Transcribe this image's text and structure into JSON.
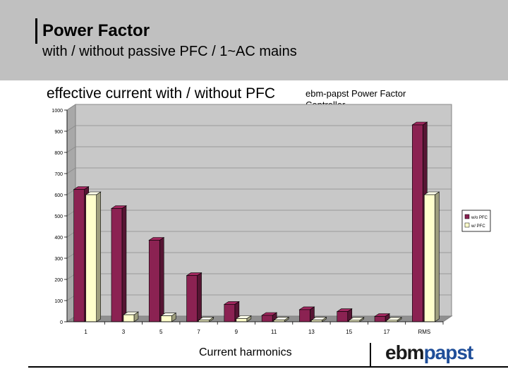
{
  "header": {
    "title": "Power Factor",
    "subtitle": "with / without passive PFC / 1~AC mains"
  },
  "chart_heading": "effective current with / without PFC",
  "controller_label": "ebm-papst Power Factor Controller",
  "footer": {
    "logo_part1": "ebm",
    "logo_part2": "papst"
  },
  "colors": {
    "header_bg": "#c0c0c0",
    "series_without": "#8b2252",
    "series_with": "#ffffcc",
    "logo_blue": "#1f4e99"
  },
  "chart_data": {
    "type": "bar",
    "categories": [
      "1",
      "3",
      "5",
      "7",
      "9",
      "11",
      "13",
      "15",
      "17",
      "RMS"
    ],
    "series": [
      {
        "name": "w/o PFC",
        "values": [
          625,
          535,
          385,
          218,
          82,
          30,
          57,
          48,
          25,
          930
        ]
      },
      {
        "name": "w/ PFC",
        "values": [
          600,
          33,
          28,
          8,
          15,
          8,
          8,
          7,
          7,
          600
        ]
      }
    ],
    "yticks": [
      "0",
      "100",
      "200",
      "300",
      "400",
      "500",
      "600",
      "700",
      "800",
      "900",
      "1000"
    ],
    "ylim": [
      0,
      1000
    ],
    "xlabel": "Current harmonics",
    "ylabel": "",
    "grid": true,
    "legend_position": "right",
    "style": "3d"
  }
}
